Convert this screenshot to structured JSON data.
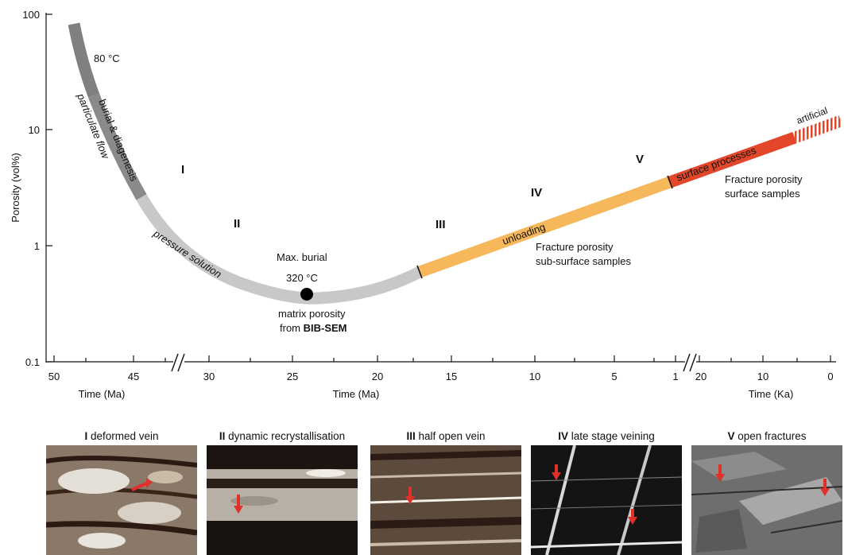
{
  "chart_data": {
    "type": "line",
    "ylabel": "Porosity (vol%)",
    "y_scale": "log",
    "ylim": [
      0.1,
      100
    ],
    "y_ticks": [
      "100",
      "10",
      "1",
      "0.1"
    ],
    "x_axes": [
      {
        "label": "Time (Ma)",
        "ticks": [
          "50",
          "45",
          "30",
          "25",
          "20",
          "15",
          "10",
          "5",
          "1"
        ],
        "break_after": "45",
        "break_before": "30"
      },
      {
        "label": "Time (Ka)",
        "ticks": [
          "20",
          "10",
          "0"
        ]
      }
    ],
    "segments": [
      {
        "name": "particulate flow",
        "color": "#808080",
        "from_label": "80 °C"
      },
      {
        "name": "burial & diagenesis",
        "color": "#8a8a8a"
      },
      {
        "name": "pressure solution",
        "color": "#c8c8c8"
      },
      {
        "name": "unloading",
        "color": "#f6b85a"
      },
      {
        "name": "surface processes",
        "color": "#e2472a"
      },
      {
        "name": "artificial",
        "color": "#e2472a",
        "style": "hatched"
      }
    ],
    "stages": [
      "I",
      "II",
      "III",
      "IV",
      "V"
    ],
    "marker": {
      "label_top": "Max. burial",
      "label_temp": "320 °C",
      "x_ma": 24,
      "y_porosity": 0.37,
      "caption_line1": "matrix porosity",
      "caption_line2_prefix": "from ",
      "caption_line2_bold": "BIB-SEM"
    },
    "annotations": {
      "start_temp": "80 °C",
      "fracture_subsurface_1": "Fracture porosity",
      "fracture_subsurface_2": "sub-surface samples",
      "fracture_surface_1": "Fracture porosity",
      "fracture_surface_2": "surface samples"
    }
  },
  "panels": [
    {
      "numeral": "I",
      "title": " deformed vein"
    },
    {
      "numeral": "II",
      "title": " dynamic recrystallisation"
    },
    {
      "numeral": "III",
      "title": " half open vein"
    },
    {
      "numeral": "IV",
      "title": " late stage veining"
    },
    {
      "numeral": "V",
      "title": " open fractures"
    }
  ],
  "colors": {
    "arrow": "#e0302a",
    "orange": "#f6b85a",
    "red": "#e2472a",
    "grey_dark": "#808080",
    "grey_light": "#c8c8c8"
  }
}
